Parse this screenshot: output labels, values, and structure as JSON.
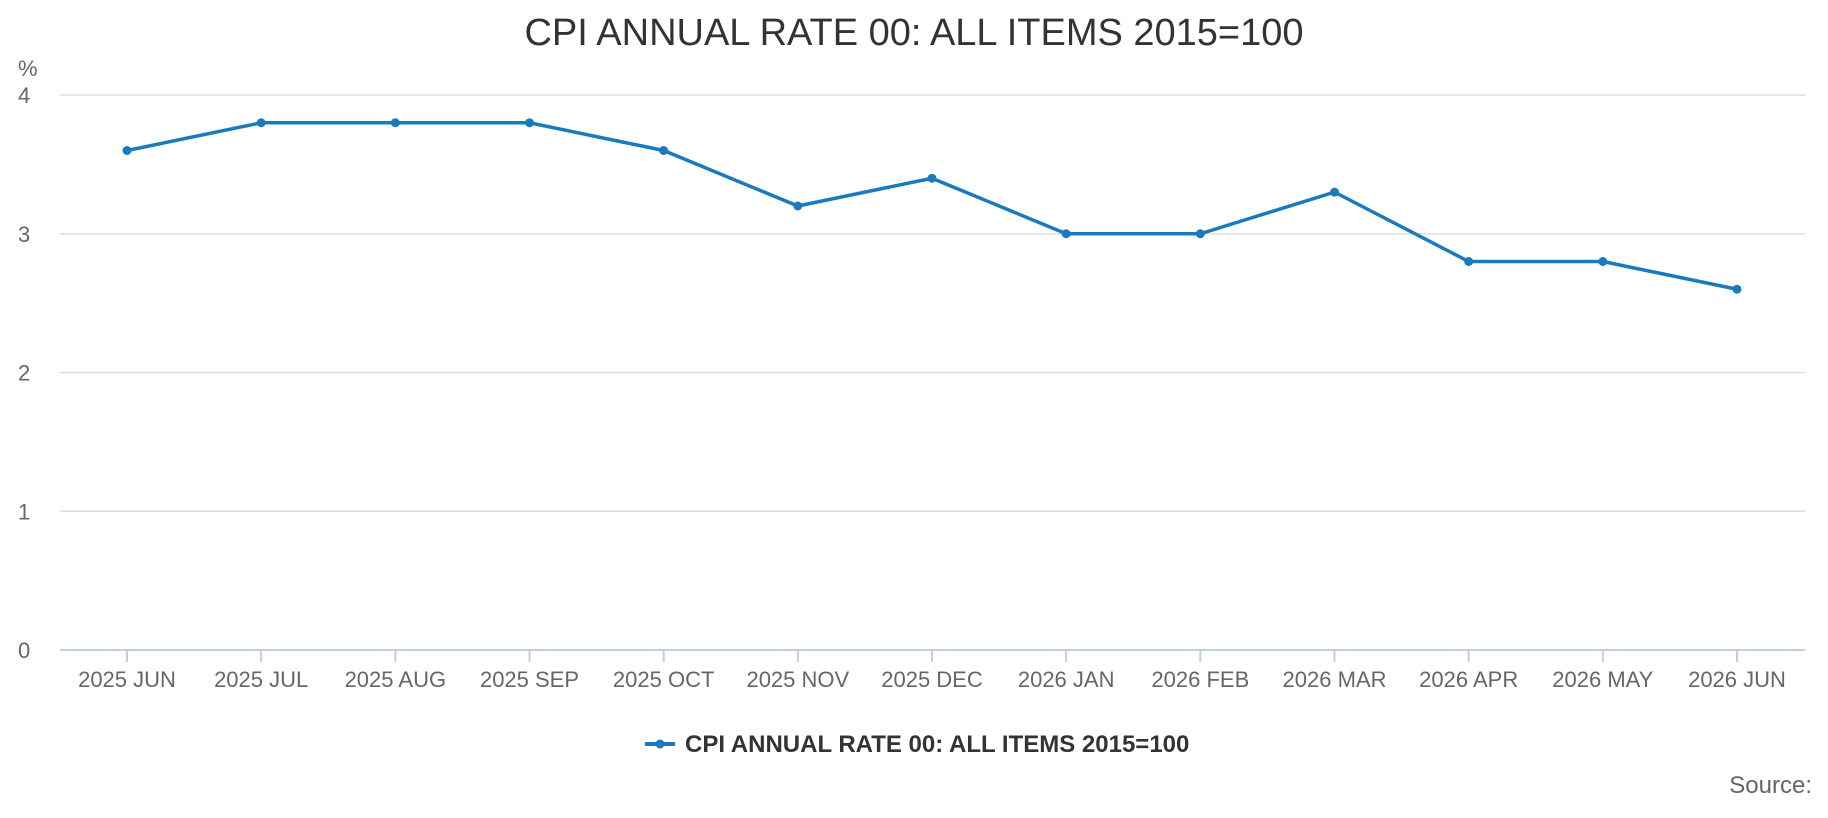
{
  "chart_data": {
    "type": "line",
    "title": "CPI ANNUAL RATE 00: ALL ITEMS 2015=100",
    "ylabel": "%",
    "xlabel": "",
    "categories": [
      "2025 JUN",
      "2025 JUL",
      "2025 AUG",
      "2025 SEP",
      "2025 OCT",
      "2025 NOV",
      "2025 DEC",
      "2026 JAN",
      "2026 FEB",
      "2026 MAR",
      "2026 APR",
      "2026 MAY",
      "2026 JUN"
    ],
    "series": [
      {
        "name": "CPI ANNUAL RATE 00: ALL ITEMS 2015=100",
        "values": [
          3.6,
          3.8,
          3.8,
          3.8,
          3.6,
          3.2,
          3.4,
          3.0,
          3.0,
          3.3,
          2.8,
          2.8,
          2.6
        ],
        "color": "#1a7abf"
      }
    ],
    "ylim": [
      0,
      4
    ],
    "yticks": [
      "0",
      "1",
      "2",
      "3",
      "4"
    ],
    "grid": true,
    "legend": "bottom-center",
    "source": "Source:"
  }
}
